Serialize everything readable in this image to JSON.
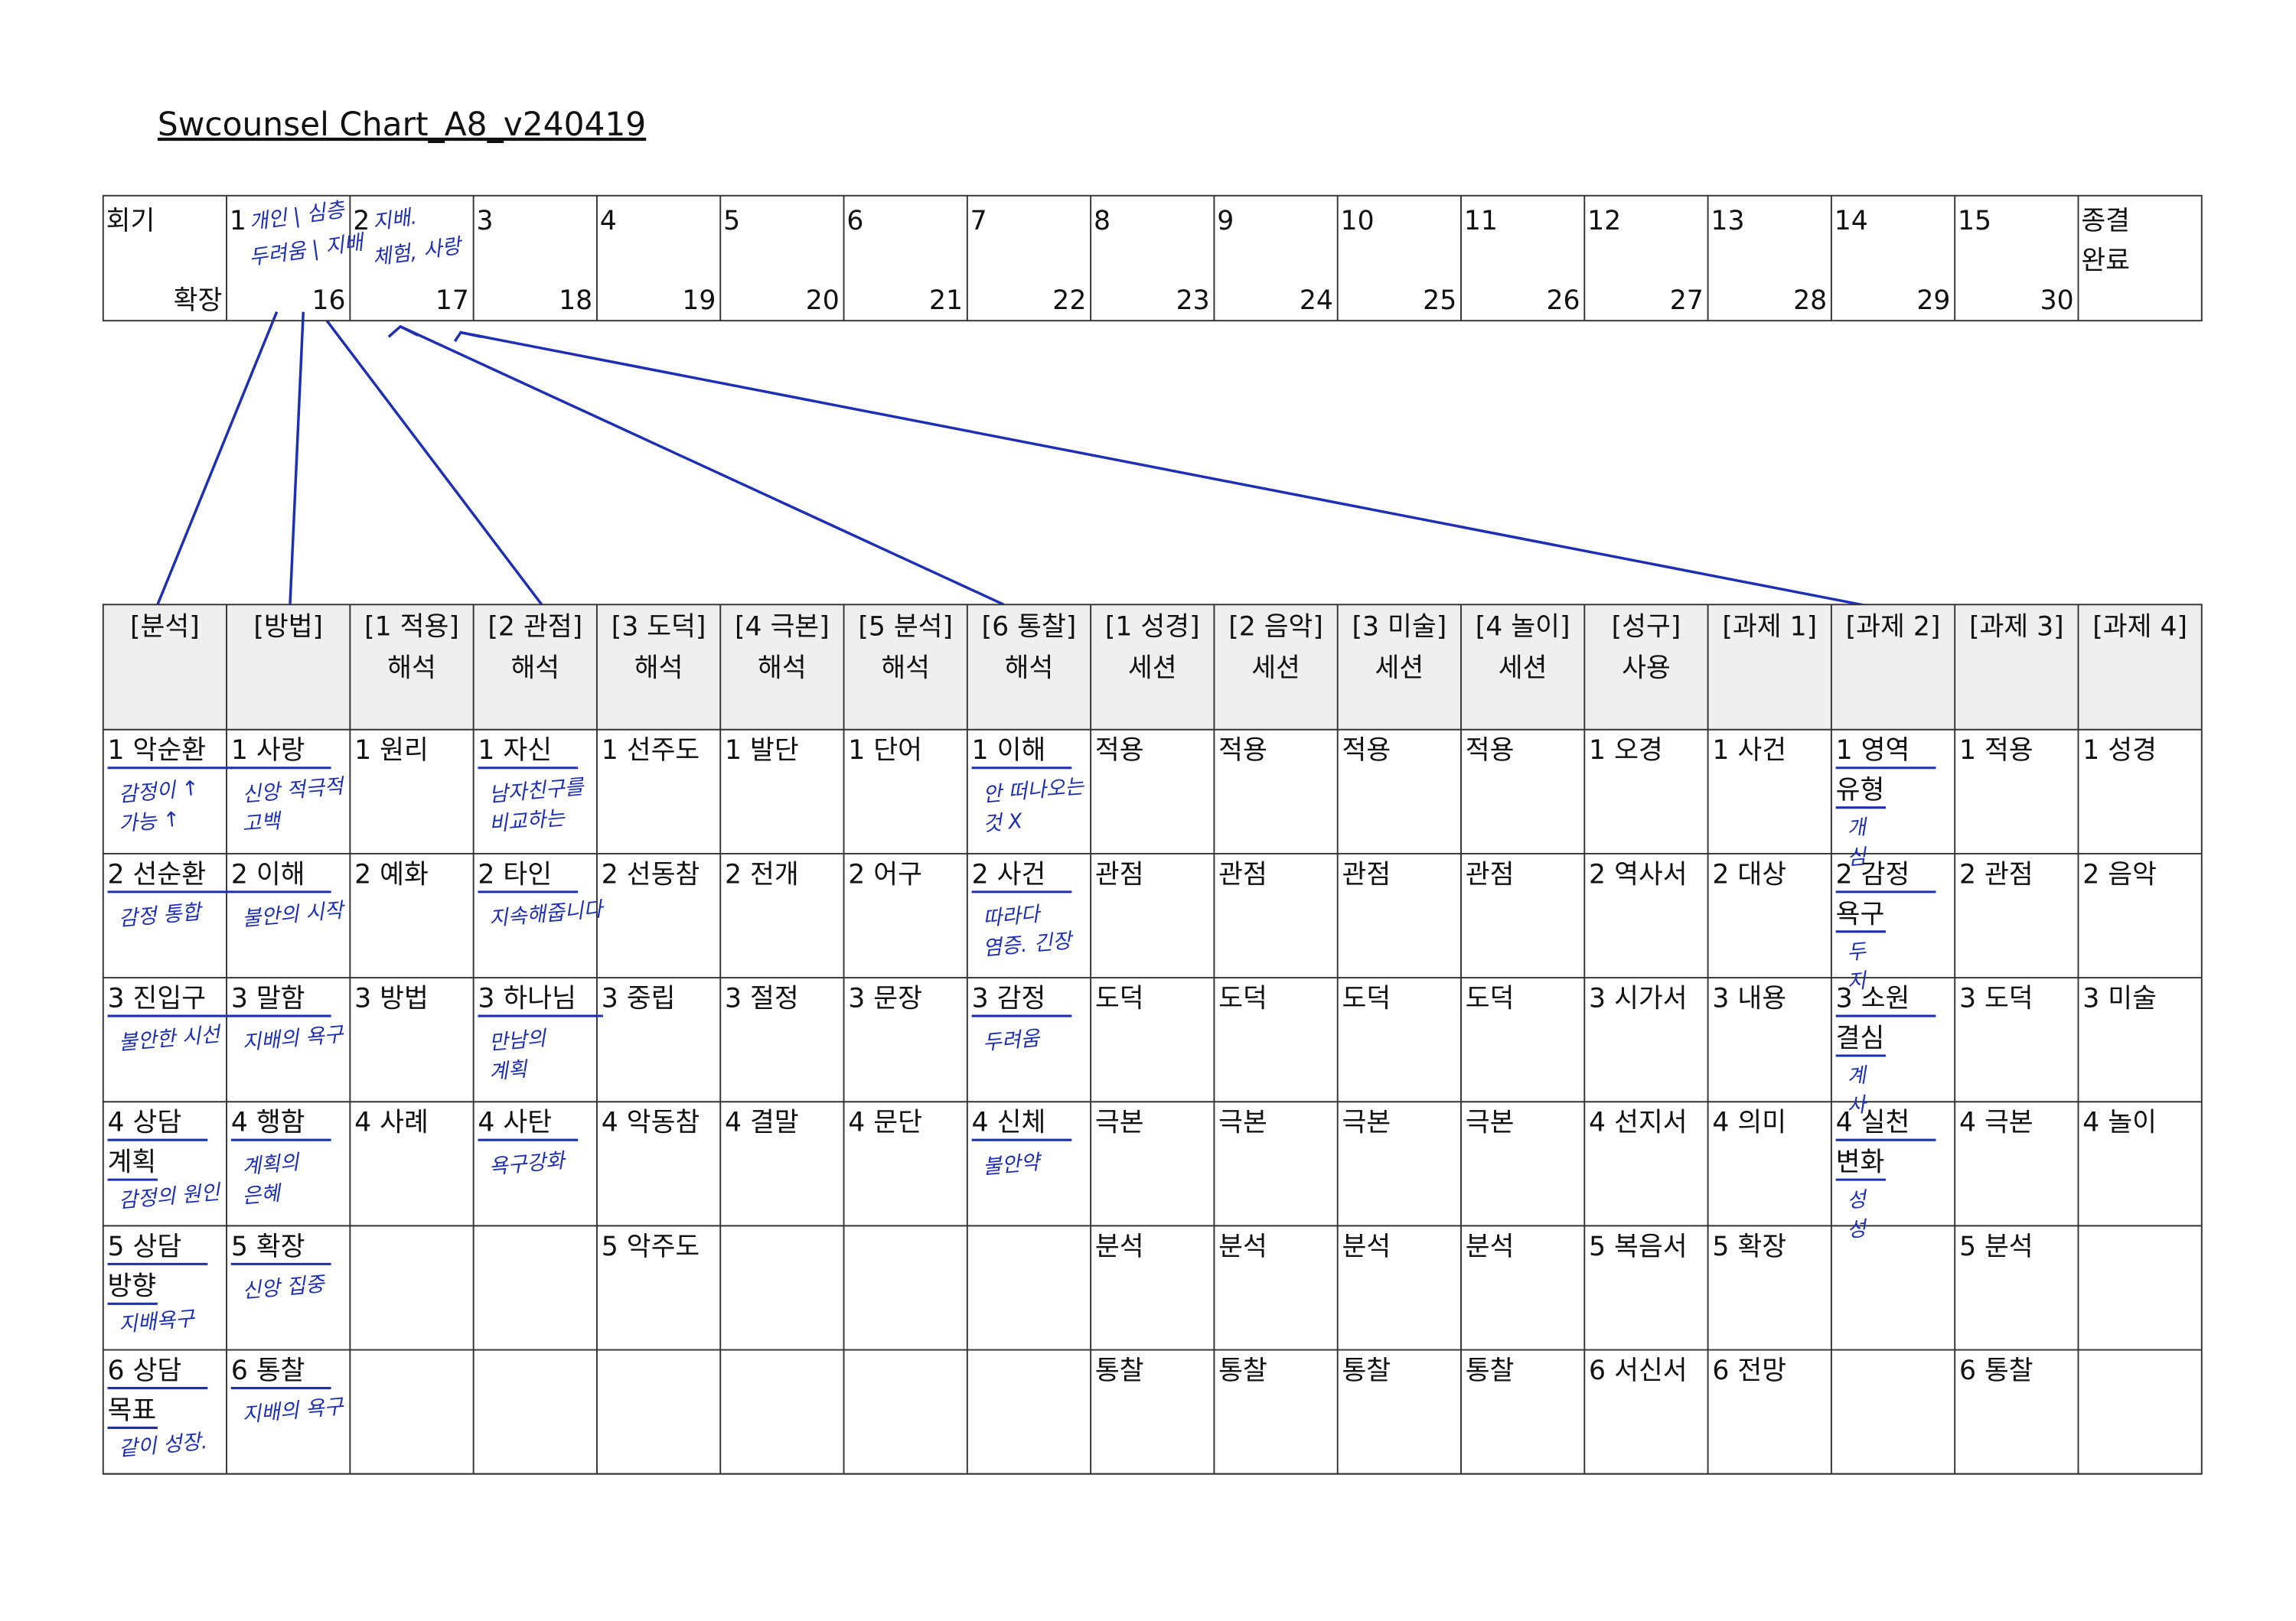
{
  "title": "Swcounsel Chart_A8_v240419",
  "sessions": {
    "label": "회기",
    "extension_label": "확장",
    "first": [
      {
        "number": 1,
        "note": [
          "개인 | 심층",
          "두려움 | 지배"
        ]
      },
      {
        "number": 2,
        "note": [
          "지배.",
          "체험, 사랑"
        ]
      },
      {
        "number": 3
      },
      {
        "number": 4
      },
      {
        "number": 5
      },
      {
        "number": 6
      },
      {
        "number": 7
      },
      {
        "number": 8
      },
      {
        "number": 9
      },
      {
        "number": 10
      },
      {
        "number": 11
      },
      {
        "number": 12
      },
      {
        "number": 13
      },
      {
        "number": 14
      },
      {
        "number": 15
      }
    ],
    "second": [
      16,
      17,
      18,
      19,
      20,
      21,
      22,
      23,
      24,
      25,
      26,
      27,
      28,
      29,
      30
    ],
    "closing": [
      "종결",
      "완료"
    ]
  },
  "table": {
    "headers": [
      [
        "[분석]"
      ],
      [
        "[방법]"
      ],
      [
        "[1 적용]",
        "해석"
      ],
      [
        "[2 관점]",
        "해석"
      ],
      [
        "[3 도덕]",
        "해석"
      ],
      [
        "[4 극본]",
        "해석"
      ],
      [
        "[5 분석]",
        "해석"
      ],
      [
        "[6 통찰]",
        "해석"
      ],
      [
        "[1 성경]",
        "세션"
      ],
      [
        "[2 음악]",
        "세션"
      ],
      [
        "[3 미술]",
        "세션"
      ],
      [
        "[4 놀이]",
        "세션"
      ],
      [
        "[성구]",
        "사용"
      ],
      [
        "[과제 1]"
      ],
      [
        "[과제 2]"
      ],
      [
        "[과제 3]"
      ],
      [
        "[과제 4]"
      ]
    ],
    "rows": [
      [
        {
          "text": [
            "1 악순환"
          ],
          "note": [
            "감정이 ↑",
            "가능 ↑"
          ]
        },
        {
          "text": [
            "1 사랑"
          ],
          "note": [
            "신앙 적극적",
            "고백"
          ]
        },
        {
          "text": [
            "1 원리"
          ]
        },
        {
          "text": [
            "1 자신"
          ],
          "note": [
            "남자친구를",
            "비교하는"
          ]
        },
        {
          "text": [
            "1 선주도"
          ]
        },
        {
          "text": [
            "1 발단"
          ]
        },
        {
          "text": [
            "1 단어"
          ]
        },
        {
          "text": [
            "1 이해"
          ],
          "note": [
            "안 떠나오는",
            "것 X"
          ]
        },
        {
          "text": [
            "적용"
          ]
        },
        {
          "text": [
            "적용"
          ]
        },
        {
          "text": [
            "적용"
          ]
        },
        {
          "text": [
            "적용"
          ]
        },
        {
          "text": [
            "1 오경"
          ]
        },
        {
          "text": [
            "1 사건"
          ]
        },
        {
          "text": [
            "1 영역",
            "유형"
          ],
          "note": [
            "개",
            "심"
          ]
        },
        {
          "text": [
            "1 적용"
          ]
        },
        {
          "text": [
            "1 성경"
          ]
        }
      ],
      [
        {
          "text": [
            "2 선순환"
          ],
          "note": [
            "감정 통합"
          ]
        },
        {
          "text": [
            "2 이해"
          ],
          "note": [
            "불안의 시작"
          ]
        },
        {
          "text": [
            "2 예화"
          ]
        },
        {
          "text": [
            "2 타인"
          ],
          "note": [
            "지속해줍니다"
          ]
        },
        {
          "text": [
            "2 선동참"
          ]
        },
        {
          "text": [
            "2 전개"
          ]
        },
        {
          "text": [
            "2 어구"
          ]
        },
        {
          "text": [
            "2 사건"
          ],
          "note": [
            "따라다",
            "염증. 긴장"
          ]
        },
        {
          "text": [
            "관점"
          ]
        },
        {
          "text": [
            "관점"
          ]
        },
        {
          "text": [
            "관점"
          ]
        },
        {
          "text": [
            "관점"
          ]
        },
        {
          "text": [
            "2 역사서"
          ]
        },
        {
          "text": [
            "2 대상"
          ]
        },
        {
          "text": [
            "2 감정",
            "욕구"
          ],
          "note": [
            "두",
            "지"
          ]
        },
        {
          "text": [
            "2 관점"
          ]
        },
        {
          "text": [
            "2 음악"
          ]
        }
      ],
      [
        {
          "text": [
            "3 진입구"
          ],
          "note": [
            "불안한 시선"
          ]
        },
        {
          "text": [
            "3 말함"
          ],
          "note": [
            "지배의 욕구"
          ]
        },
        {
          "text": [
            "3 방법"
          ]
        },
        {
          "text": [
            "3 하나님"
          ],
          "note": [
            "만남의",
            "계획"
          ]
        },
        {
          "text": [
            "3 중립"
          ]
        },
        {
          "text": [
            "3 절정"
          ]
        },
        {
          "text": [
            "3 문장"
          ]
        },
        {
          "text": [
            "3 감정"
          ],
          "note": [
            "두려움"
          ]
        },
        {
          "text": [
            "도덕"
          ]
        },
        {
          "text": [
            "도덕"
          ]
        },
        {
          "text": [
            "도덕"
          ]
        },
        {
          "text": [
            "도덕"
          ]
        },
        {
          "text": [
            "3 시가서"
          ]
        },
        {
          "text": [
            "3 내용"
          ]
        },
        {
          "text": [
            "3 소원",
            "결심"
          ],
          "note": [
            "계",
            "사"
          ]
        },
        {
          "text": [
            "3 도덕"
          ]
        },
        {
          "text": [
            "3 미술"
          ]
        }
      ],
      [
        {
          "text": [
            "4 상담",
            "계획"
          ],
          "note": [
            "감정의 원인"
          ]
        },
        {
          "text": [
            "4 행함"
          ],
          "note": [
            "계획의",
            "은혜"
          ]
        },
        {
          "text": [
            "4 사례"
          ]
        },
        {
          "text": [
            "4 사탄"
          ],
          "note": [
            "욕구강화"
          ]
        },
        {
          "text": [
            "4 악동참"
          ]
        },
        {
          "text": [
            "4 결말"
          ]
        },
        {
          "text": [
            "4 문단"
          ]
        },
        {
          "text": [
            "4 신체"
          ],
          "note": [
            "불안약"
          ]
        },
        {
          "text": [
            "극본"
          ]
        },
        {
          "text": [
            "극본"
          ]
        },
        {
          "text": [
            "극본"
          ]
        },
        {
          "text": [
            "극본"
          ]
        },
        {
          "text": [
            "4 선지서"
          ]
        },
        {
          "text": [
            "4 의미"
          ]
        },
        {
          "text": [
            "4 실천",
            "변화"
          ],
          "note": [
            "성",
            "성"
          ]
        },
        {
          "text": [
            "4 극본"
          ]
        },
        {
          "text": [
            "4 놀이"
          ]
        }
      ],
      [
        {
          "text": [
            "5 상담",
            "방향"
          ],
          "note": [
            "지배욕구"
          ]
        },
        {
          "text": [
            "5 확장"
          ],
          "note": [
            "신앙 집중"
          ]
        },
        {},
        {},
        {
          "text": [
            "5 악주도"
          ]
        },
        {},
        {},
        {},
        {
          "text": [
            "분석"
          ]
        },
        {
          "text": [
            "분석"
          ]
        },
        {
          "text": [
            "분석"
          ]
        },
        {
          "text": [
            "분석"
          ]
        },
        {
          "text": [
            "5 복음서"
          ]
        },
        {
          "text": [
            "5 확장"
          ]
        },
        {},
        {
          "text": [
            "5 분석"
          ]
        },
        {}
      ],
      [
        {
          "text": [
            "6 상담",
            "목표"
          ],
          "note": [
            "같이 성장."
          ]
        },
        {
          "text": [
            "6 통찰"
          ],
          "note": [
            "지배의 욕구"
          ]
        },
        {},
        {},
        {},
        {},
        {},
        {},
        {
          "text": [
            "통찰"
          ]
        },
        {
          "text": [
            "통찰"
          ]
        },
        {
          "text": [
            "통찰"
          ]
        },
        {
          "text": [
            "통찰"
          ]
        },
        {
          "text": [
            "6 서신서"
          ]
        },
        {
          "text": [
            "6 전망"
          ]
        },
        {},
        {
          "text": [
            "6 통찰"
          ]
        },
        {}
      ]
    ]
  }
}
